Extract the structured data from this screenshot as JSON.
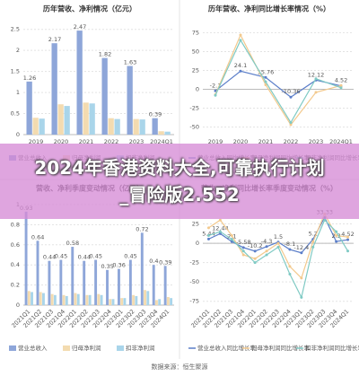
{
  "chart_data": [
    {
      "type": "bar",
      "title": "历年营收、净利情况（亿元）",
      "categories": [
        "2019",
        "2020",
        "2021",
        "2022",
        "2023",
        "2024Q1"
      ],
      "ylim": [
        0,
        2.6
      ],
      "yticks": [
        0,
        0.5,
        1,
        1.5,
        2,
        2.5
      ],
      "grid": true,
      "series": [
        {
          "name": "营业总收入",
          "color": "#8ea6d9",
          "values": [
            1.26,
            2.17,
            2.47,
            1.82,
            1.63,
            0.39
          ],
          "data_labels": true
        },
        {
          "name": "归母净利润",
          "color": "#f3dbb0",
          "values": [
            0.4,
            0.72,
            0.76,
            0.39,
            0.37,
            0.08
          ]
        },
        {
          "name": "扣非净利润",
          "color": "#a9d5ea",
          "values": [
            0.38,
            0.68,
            0.74,
            0.37,
            0.36,
            0.07
          ]
        }
      ]
    },
    {
      "type": "line",
      "title": "历年营收、净利同比增长率情况（%）",
      "categories": [
        "2019",
        "2020",
        "2021",
        "2022",
        "2023",
        "2024Q1"
      ],
      "ylim": [
        -60,
        85
      ],
      "yticks": [
        -50,
        -25,
        0,
        25,
        50,
        75
      ],
      "grid": true,
      "series": [
        {
          "name": "营业总收入同比增长率",
          "color": "#5b7ec9",
          "values": [
            -2.1,
            24.1,
            15.76,
            -10.36,
            12.12,
            4.52
          ],
          "data_labels": true
        },
        {
          "name": "归母净利润同比增长率",
          "color": "#f3c98d",
          "values": [
            -7,
            72,
            6,
            -47,
            -4,
            5
          ]
        },
        {
          "name": "扣非净利润同比增长率",
          "color": "#7fcac4",
          "values": [
            -8,
            65,
            10,
            -44,
            14,
            2
          ]
        }
      ]
    },
    {
      "type": "bar",
      "title": "营收、净利季度变动情况（亿元）",
      "categories": [
        "2021Q1",
        "2021Q2",
        "2021Q3",
        "2021Q4",
        "2022Q1",
        "2022Q2",
        "2022Q3",
        "2022Q4",
        "2023Q1",
        "2023Q2",
        "2023Q3",
        "2023Q4",
        "2024Q1"
      ],
      "ylim": [
        0,
        1
      ],
      "yticks": [
        0,
        0.2,
        0.4,
        0.6,
        0.8,
        1
      ],
      "grid": true,
      "series": [
        {
          "name": "营业总收入",
          "color": "#8ea6d9",
          "values": [
            0.93,
            0.64,
            0.44,
            0.45,
            0.58,
            0.44,
            0.45,
            0.35,
            0.36,
            0.45,
            0.72,
            0.4,
            0.39
          ],
          "data_labels": true
        },
        {
          "name": "归母净利润",
          "color": "#f3dbb0",
          "values": [
            0.14,
            0.13,
            0.11,
            0.1,
            0.12,
            0.1,
            0.11,
            0.06,
            0.07,
            0.1,
            0.15,
            0.05,
            0.08
          ]
        },
        {
          "name": "扣非净利润",
          "color": "#a9d5ea",
          "values": [
            0.13,
            0.12,
            0.1,
            0.09,
            0.11,
            0.1,
            0.1,
            0.06,
            0.07,
            0.09,
            0.14,
            0.06,
            0.07
          ]
        }
      ]
    },
    {
      "type": "line",
      "title": "营收、净利同比增长率季度变动情况（%）",
      "categories": [
        "2021Q1",
        "2021Q2",
        "2021Q3",
        "2021Q4",
        "2022Q1",
        "2022Q2",
        "2022Q3",
        "2022Q4",
        "2023Q1",
        "2023Q2",
        "2023Q3",
        "2023Q4",
        "2024Q1"
      ],
      "ylim": [
        -80,
        50
      ],
      "yticks": [
        -75,
        -50,
        -25,
        0,
        25
      ],
      "grid": true,
      "series": [
        {
          "name": "营业总收入同比增长率",
          "color": "#5b7ec9",
          "values": [
            5.44,
            12.44,
            2.1,
            -5.58,
            -10.2,
            -4.3,
            1.5,
            -8.1,
            -12.4,
            5.2,
            33.33,
            2.3,
            4.52
          ],
          "data_labels": true
        },
        {
          "name": "归母净利润同比增长率",
          "color": "#f3c98d",
          "values": [
            20,
            30,
            10,
            -15,
            -20,
            -10,
            0,
            -30,
            -45,
            2,
            38,
            10,
            8
          ]
        },
        {
          "name": "扣非净利润同比增长率",
          "color": "#7fcac4",
          "values": [
            10,
            15,
            5,
            -10,
            -25,
            -15,
            -5,
            -40,
            -70,
            -5,
            30,
            15,
            -10
          ]
        }
      ]
    }
  ],
  "banner": {
    "text": "2024年香港资料大全,可靠执行计划_冒险版2.552"
  },
  "footer": {
    "source": "数据来源：恒生聚源"
  }
}
